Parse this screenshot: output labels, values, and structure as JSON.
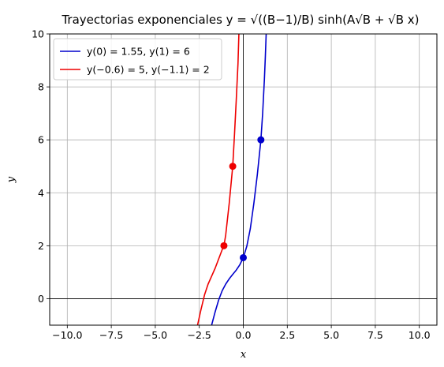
{
  "chart_data": {
    "type": "line",
    "title": "Trayectorias exponenciales",
    "title_formula": "y = √((B−1)/B) sinh(A√B + √B x)",
    "xlabel": "x",
    "ylabel": "y",
    "xlim": [
      -11,
      11
    ],
    "ylim": [
      -1,
      10
    ],
    "x_ticks": [
      -10,
      -7.5,
      -5,
      -2.5,
      0,
      2.5,
      5,
      7.5,
      10
    ],
    "x_tick_labels": [
      "−10.0",
      "−7.5",
      "−5.0",
      "−2.5",
      "0.0",
      "2.5",
      "5.0",
      "7.5",
      "10.0"
    ],
    "y_ticks": [
      0,
      2,
      4,
      6,
      8,
      10
    ],
    "y_tick_labels": [
      "0",
      "2",
      "4",
      "6",
      "8",
      "10"
    ],
    "grid": true,
    "legend_position": "top-left",
    "series": [
      {
        "name": "y(0) = 1.55, y(1) = 6",
        "color": "#0000cc",
        "x": [
          -1.8,
          -1.6,
          -1.4,
          -1.2,
          -1.0,
          -0.8,
          -0.6,
          -0.4,
          -0.2,
          0.0,
          0.2,
          0.4,
          0.6,
          0.8,
          1.0,
          1.1,
          1.2,
          1.25,
          1.3
        ],
        "y": [
          -1.0,
          -0.5,
          -0.05,
          0.3,
          0.55,
          0.75,
          0.92,
          1.08,
          1.28,
          1.55,
          1.98,
          2.65,
          3.6,
          4.7,
          6.0,
          7.0,
          8.3,
          9.1,
          10.0
        ],
        "points": [
          [
            0,
            1.55
          ],
          [
            1,
            6
          ]
        ]
      },
      {
        "name": "y(−0.6) = 5, y(−1.1) = 2",
        "color": "#ee0000",
        "x": [
          -2.6,
          -2.4,
          -2.2,
          -2.0,
          -1.8,
          -1.6,
          -1.4,
          -1.2,
          -1.1,
          -1.0,
          -0.9,
          -0.8,
          -0.7,
          -0.6,
          -0.5,
          -0.4,
          -0.3,
          -0.25
        ],
        "y": [
          -1.0,
          -0.4,
          0.15,
          0.55,
          0.85,
          1.15,
          1.5,
          1.85,
          2.0,
          2.4,
          3.0,
          3.6,
          4.3,
          5.0,
          6.2,
          7.5,
          8.9,
          10.0
        ],
        "points": [
          [
            -1.1,
            2
          ],
          [
            -0.6,
            5
          ]
        ]
      }
    ]
  }
}
